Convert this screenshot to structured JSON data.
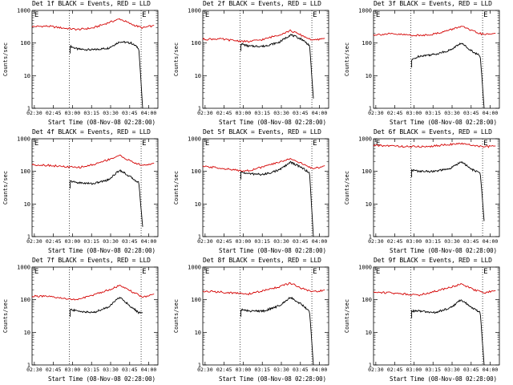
{
  "figure": {
    "x_label": "Start Time (08-Nov-08 02:28:00)",
    "y_label": "Counts/sec",
    "marker_label": "E"
  },
  "chart_data": [
    {
      "type": "line",
      "title": "Det 1f BLACK = Events, RED = LLD",
      "ylim": [
        1,
        1000
      ],
      "yscale": "log",
      "x_ticks": [
        "02:30",
        "02:45",
        "03:00",
        "03:15",
        "03:30",
        "03:45",
        "04:00"
      ],
      "y_ticks": [
        "1",
        "10",
        "100",
        "1000"
      ],
      "series": [
        {
          "name": "Events",
          "color": "#000000",
          "x": [
            5.0,
            6.0,
            8.0,
            10.0,
            11.5,
            13.0,
            14.0,
            14.5
          ],
          "y": [
            80,
            65,
            62,
            70,
            110,
            100,
            70,
            1
          ]
        },
        {
          "name": "LLD",
          "color": "#d40000",
          "x": [
            0,
            2,
            4,
            6,
            8,
            10,
            11.5,
            13,
            14.5,
            16
          ],
          "y": [
            320,
            330,
            290,
            260,
            290,
            420,
            550,
            380,
            290,
            350
          ]
        }
      ]
    },
    {
      "type": "line",
      "title": "Det 2f BLACK = Events, RED = LLD",
      "ylim": [
        1,
        1000
      ],
      "yscale": "log",
      "x_ticks": [
        "02:30",
        "02:45",
        "03:00",
        "03:15",
        "03:30",
        "03:45",
        "04:00"
      ],
      "y_ticks": [
        "1",
        "10",
        "100",
        "1000"
      ],
      "series": [
        {
          "name": "Events",
          "color": "#000000",
          "x": [
            5.0,
            6.0,
            8.0,
            10.0,
            11.5,
            13.0,
            14.0,
            14.5
          ],
          "y": [
            95,
            80,
            80,
            105,
            180,
            130,
            85,
            2
          ]
        },
        {
          "name": "LLD",
          "color": "#d40000",
          "x": [
            0,
            2,
            4,
            6,
            8,
            10,
            11.5,
            13,
            14.5,
            16
          ],
          "y": [
            130,
            135,
            120,
            110,
            130,
            180,
            240,
            170,
            120,
            140
          ]
        }
      ]
    },
    {
      "type": "line",
      "title": "Det 3f BLACK = Events, RED = LLD",
      "ylim": [
        1,
        1000
      ],
      "yscale": "log",
      "x_ticks": [
        "02:30",
        "02:45",
        "03:00",
        "03:15",
        "03:30",
        "03:45",
        "04:00"
      ],
      "y_ticks": [
        "1",
        "10",
        "100",
        "1000"
      ],
      "series": [
        {
          "name": "Events",
          "color": "#000000",
          "x": [
            5.0,
            6.0,
            8.0,
            10.0,
            11.5,
            13.0,
            14.0,
            14.5
          ],
          "y": [
            30,
            40,
            45,
            60,
            100,
            55,
            40,
            1
          ]
        },
        {
          "name": "LLD",
          "color": "#d40000",
          "x": [
            0,
            2,
            4,
            6,
            8,
            10,
            11.5,
            13,
            14.5,
            16
          ],
          "y": [
            180,
            190,
            180,
            170,
            190,
            250,
            330,
            230,
            180,
            200
          ]
        }
      ]
    },
    {
      "type": "line",
      "title": "Det 4f BLACK = Events, RED = LLD",
      "ylim": [
        1,
        1000
      ],
      "yscale": "log",
      "x_ticks": [
        "02:30",
        "02:45",
        "03:00",
        "03:15",
        "03:30",
        "03:45",
        "04:00"
      ],
      "y_ticks": [
        "1",
        "10",
        "100",
        "1000"
      ],
      "series": [
        {
          "name": "Events",
          "color": "#000000",
          "x": [
            5.0,
            6.0,
            8.0,
            10.0,
            11.5,
            13.0,
            14.0,
            14.5
          ],
          "y": [
            50,
            45,
            42,
            55,
            110,
            65,
            45,
            2
          ]
        },
        {
          "name": "LLD",
          "color": "#d40000",
          "x": [
            0,
            2,
            4,
            6,
            8,
            10,
            11.5,
            13,
            14.5,
            16
          ],
          "y": [
            160,
            155,
            140,
            130,
            160,
            230,
            310,
            200,
            150,
            180
          ]
        }
      ]
    },
    {
      "type": "line",
      "title": "Det 5f BLACK = Events, RED = LLD",
      "ylim": [
        1,
        1000
      ],
      "yscale": "log",
      "x_ticks": [
        "02:30",
        "02:45",
        "03:00",
        "03:15",
        "03:30",
        "03:45",
        "04:00"
      ],
      "y_ticks": [
        "1",
        "10",
        "100",
        "1000"
      ],
      "series": [
        {
          "name": "Events",
          "color": "#000000",
          "x": [
            5.0,
            6.0,
            8.0,
            10.0,
            11.5,
            13.0,
            14.0,
            14.5
          ],
          "y": [
            95,
            85,
            80,
            110,
            190,
            130,
            90,
            1
          ]
        },
        {
          "name": "LLD",
          "color": "#d40000",
          "x": [
            0,
            2,
            4,
            6,
            8,
            10,
            11.5,
            13,
            14.5,
            16
          ],
          "y": [
            140,
            130,
            110,
            105,
            140,
            190,
            250,
            170,
            120,
            150
          ]
        }
      ]
    },
    {
      "type": "line",
      "title": "Det 6f BLACK = Events, RED = LLD",
      "ylim": [
        1,
        1000
      ],
      "yscale": "log",
      "x_ticks": [
        "02:30",
        "02:45",
        "03:00",
        "03:15",
        "03:30",
        "03:45",
        "04:00"
      ],
      "y_ticks": [
        "1",
        "10",
        "100",
        "1000"
      ],
      "series": [
        {
          "name": "Events",
          "color": "#000000",
          "x": [
            5.0,
            6.0,
            8.0,
            10.0,
            11.5,
            13.0,
            14.0,
            14.5
          ],
          "y": [
            110,
            100,
            100,
            120,
            200,
            110,
            90,
            3
          ]
        },
        {
          "name": "LLD",
          "color": "#d40000",
          "x": [
            0,
            2,
            4,
            6,
            8,
            10,
            11.5,
            13,
            14.5,
            16
          ],
          "y": [
            620,
            610,
            580,
            570,
            600,
            680,
            700,
            640,
            560,
            600
          ]
        }
      ]
    },
    {
      "type": "line",
      "title": "Det 7f BLACK = Events, RED = LLD",
      "ylim": [
        1,
        1000
      ],
      "yscale": "log",
      "x_ticks": [
        "02:30",
        "02:45",
        "03:00",
        "03:15",
        "03:30",
        "03:45",
        "04:00"
      ],
      "y_ticks": [
        "1",
        "10",
        "100",
        "1000"
      ],
      "series": [
        {
          "name": "Events",
          "color": "#000000",
          "x": [
            5.0,
            6.0,
            8.0,
            10.0,
            11.5,
            13.0,
            14.0,
            14.5
          ],
          "y": [
            50,
            45,
            40,
            60,
            120,
            60,
            40,
            40
          ]
        },
        {
          "name": "LLD",
          "color": "#d40000",
          "x": [
            0,
            2,
            4,
            6,
            8,
            10,
            11.5,
            13,
            14.5,
            16
          ],
          "y": [
            130,
            125,
            110,
            100,
            140,
            200,
            270,
            180,
            120,
            150
          ]
        }
      ]
    },
    {
      "type": "line",
      "title": "Det 8f BLACK = Events, RED = LLD",
      "ylim": [
        1,
        1000
      ],
      "yscale": "log",
      "x_ticks": [
        "02:30",
        "02:45",
        "03:00",
        "03:15",
        "03:30",
        "03:45",
        "04:00"
      ],
      "y_ticks": [
        "1",
        "10",
        "100",
        "1000"
      ],
      "series": [
        {
          "name": "Events",
          "color": "#000000",
          "x": [
            5.0,
            6.0,
            8.0,
            10.0,
            11.5,
            13.0,
            14.0,
            14.5
          ],
          "y": [
            50,
            45,
            45,
            65,
            120,
            70,
            45,
            1
          ]
        },
        {
          "name": "LLD",
          "color": "#d40000",
          "x": [
            0,
            2,
            4,
            6,
            8,
            10,
            11.5,
            13,
            14.5,
            16
          ],
          "y": [
            180,
            175,
            160,
            150,
            190,
            250,
            320,
            220,
            170,
            200
          ]
        }
      ]
    },
    {
      "type": "line",
      "title": "Det 9f BLACK = Events, RED = LLD",
      "ylim": [
        1,
        1000
      ],
      "yscale": "log",
      "x_ticks": [
        "02:30",
        "02:45",
        "03:00",
        "03:15",
        "03:30",
        "03:45",
        "04:00"
      ],
      "y_ticks": [
        "1",
        "10",
        "100",
        "1000"
      ],
      "series": [
        {
          "name": "Events",
          "color": "#000000",
          "x": [
            5.0,
            6.0,
            8.0,
            10.0,
            11.5,
            13.0,
            14.0,
            14.5
          ],
          "y": [
            45,
            45,
            40,
            55,
            100,
            55,
            40,
            1
          ]
        },
        {
          "name": "LLD",
          "color": "#d40000",
          "x": [
            0,
            2,
            4,
            6,
            8,
            10,
            11.5,
            13,
            14.5,
            16
          ],
          "y": [
            170,
            165,
            150,
            140,
            180,
            240,
            300,
            210,
            160,
            190
          ]
        }
      ]
    }
  ]
}
